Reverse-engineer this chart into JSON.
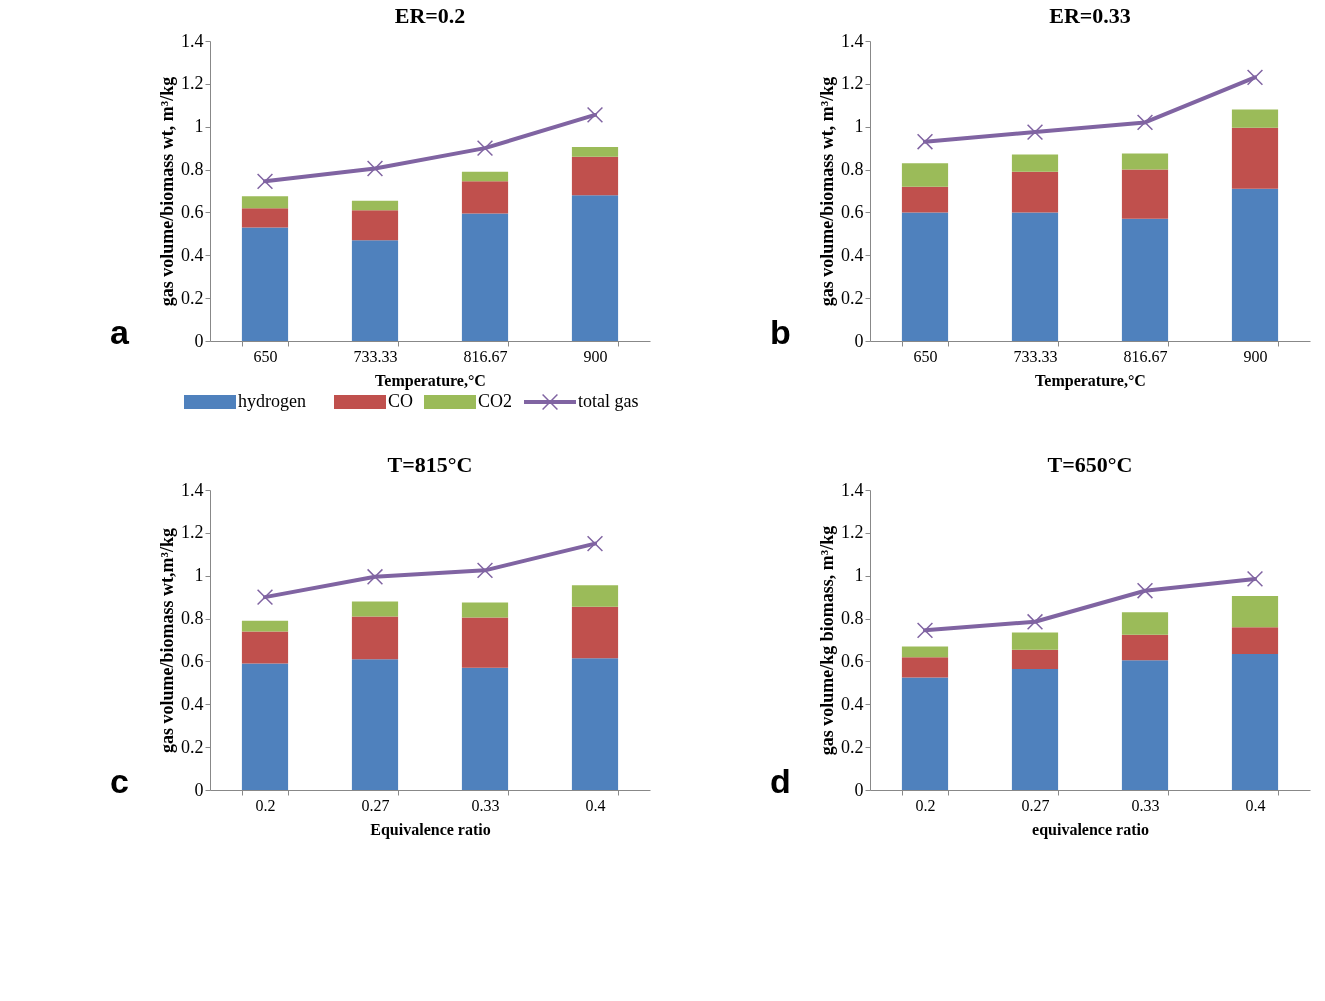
{
  "chart_data": [
    {
      "type": "bar",
      "title": "ER=0.2",
      "xlabel": "Temperature,°C",
      "ylabel": "gas volume/biomass wt, m³/kg",
      "categories": [
        "650",
        "733.33",
        "816.67",
        "900"
      ],
      "stacked": true,
      "ylim": [
        0,
        1.4
      ],
      "yticks": [
        0,
        0.2,
        0.4,
        0.6,
        0.8,
        1,
        1.2,
        1.4
      ],
      "grid": false,
      "legend": "bottom",
      "annotations": [
        "a"
      ],
      "series": [
        {
          "name": "hydrogen",
          "color": "#4f81bd",
          "values": [
            0.53,
            0.47,
            0.595,
            0.68
          ]
        },
        {
          "name": "CO",
          "color": "#c0504d",
          "values": [
            0.09,
            0.14,
            0.15,
            0.18
          ]
        },
        {
          "name": "CO2",
          "color": "#9bbb59",
          "values": [
            0.055,
            0.045,
            0.045,
            0.045
          ]
        },
        {
          "name": "total gas",
          "type": "line",
          "marker": "cross",
          "color": "#8064a2",
          "values": [
            0.745,
            0.805,
            0.9,
            1.055
          ]
        }
      ]
    },
    {
      "type": "bar",
      "title": "ER=0.33",
      "xlabel": "Temperature,°C",
      "ylabel": "gas volume/biomass wt, m³/kg",
      "categories": [
        "650",
        "733.33",
        "816.67",
        "900"
      ],
      "stacked": true,
      "ylim": [
        0,
        1.4
      ],
      "yticks": [
        0,
        0.2,
        0.4,
        0.6,
        0.8,
        1,
        1.2,
        1.4
      ],
      "grid": false,
      "legend": false,
      "annotations": [
        "b"
      ],
      "series": [
        {
          "color": "#4f81bd",
          "values": [
            0.6,
            0.6,
            0.57,
            0.71
          ]
        },
        {
          "color": "#c0504d",
          "values": [
            0.12,
            0.19,
            0.23,
            0.285
          ]
        },
        {
          "color": "#9bbb59",
          "values": [
            0.11,
            0.08,
            0.075,
            0.085
          ]
        },
        {
          "type": "line",
          "marker": "cross",
          "color": "#8064a2",
          "values": [
            0.93,
            0.975,
            1.02,
            1.23
          ]
        }
      ]
    },
    {
      "type": "bar",
      "title": "T=815°C",
      "xlabel": "Equivalence ratio",
      "ylabel": "gas volume/biomass wt,m³/kg",
      "categories": [
        "0.2",
        "0.27",
        "0.33",
        "0.4"
      ],
      "stacked": true,
      "ylim": [
        0,
        1.4
      ],
      "yticks": [
        0,
        0.2,
        0.4,
        0.6,
        0.8,
        1,
        1.2,
        1.4
      ],
      "grid": false,
      "legend": false,
      "annotations": [
        "c"
      ],
      "series": [
        {
          "color": "#4f81bd",
          "values": [
            0.59,
            0.61,
            0.57,
            0.615
          ]
        },
        {
          "color": "#c0504d",
          "values": [
            0.15,
            0.2,
            0.235,
            0.24
          ]
        },
        {
          "color": "#9bbb59",
          "values": [
            0.05,
            0.07,
            0.07,
            0.1
          ]
        },
        {
          "type": "line",
          "marker": "cross",
          "color": "#8064a2",
          "values": [
            0.9,
            0.995,
            1.025,
            1.15
          ]
        }
      ]
    },
    {
      "type": "bar",
      "title": "T=650°C",
      "xlabel": "equivalence ratio",
      "ylabel": "gas volume/kg biomass, m³/kg",
      "categories": [
        "0.2",
        "0.27",
        "0.33",
        "0.4"
      ],
      "stacked": true,
      "ylim": [
        0,
        1.4
      ],
      "yticks": [
        0,
        0.2,
        0.4,
        0.6,
        0.8,
        1,
        1.2,
        1.4
      ],
      "grid": false,
      "legend": false,
      "annotations": [
        "d"
      ],
      "series": [
        {
          "color": "#4f81bd",
          "values": [
            0.525,
            0.565,
            0.605,
            0.635
          ]
        },
        {
          "color": "#c0504d",
          "values": [
            0.095,
            0.09,
            0.12,
            0.125
          ]
        },
        {
          "color": "#9bbb59",
          "values": [
            0.05,
            0.08,
            0.105,
            0.145
          ]
        },
        {
          "type": "line",
          "marker": "cross",
          "color": "#8064a2",
          "values": [
            0.745,
            0.785,
            0.93,
            0.985
          ]
        }
      ]
    }
  ]
}
